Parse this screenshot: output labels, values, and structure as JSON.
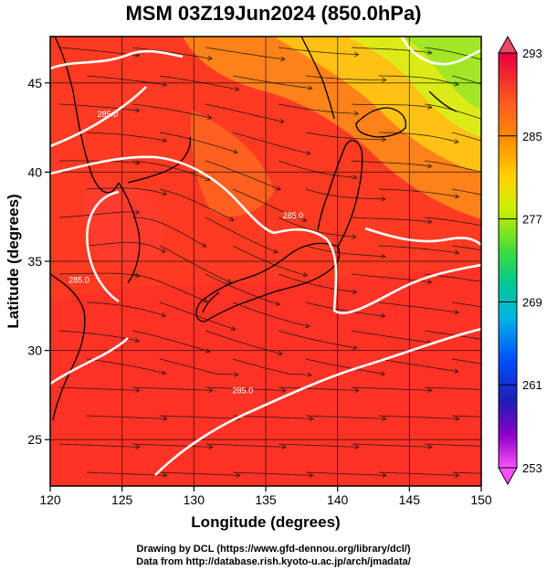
{
  "title": "MSM 03Z19Jun2024 (850.0hPa)",
  "map": {
    "xlabel": "Longitude (degrees)",
    "ylabel": "Latitude  (degrees)",
    "lon_range": [
      120,
      150
    ],
    "lat_range": [
      22.4,
      47.6
    ],
    "lon_ticks": [
      120,
      125,
      130,
      135,
      140,
      145,
      150
    ],
    "lat_ticks": [
      25,
      30,
      35,
      40,
      45
    ],
    "grid": true,
    "field": "temperature (shaded) with wind streamlines",
    "contours": [
      {
        "label": "285.0",
        "lon": 124.0,
        "lat": 43.1
      },
      {
        "label": "285.0",
        "lon": 136.9,
        "lat": 37.4
      },
      {
        "label": "285.0",
        "lon": 122.0,
        "lat": 33.8
      },
      {
        "label": "285.0",
        "lon": 133.4,
        "lat": 27.6
      }
    ]
  },
  "colorbar": {
    "ticks": [
      293,
      285,
      277,
      269,
      261,
      253
    ],
    "colors": [
      "#e6004d",
      "#ff5030",
      "#ff8a00",
      "#ffc800",
      "#ccff00",
      "#40e040",
      "#00c8a0",
      "#00a0ff",
      "#0040ff",
      "#2020c0",
      "#8000c0",
      "#d000d0",
      "#ff40ff"
    ]
  },
  "credits": {
    "line1": "Drawing by DCL (https://www.gfd-dennou.org/library/dcl/)",
    "line2": "Data from http://database.rish.kyoto-u.ac.jp/arch/jmadata/"
  }
}
